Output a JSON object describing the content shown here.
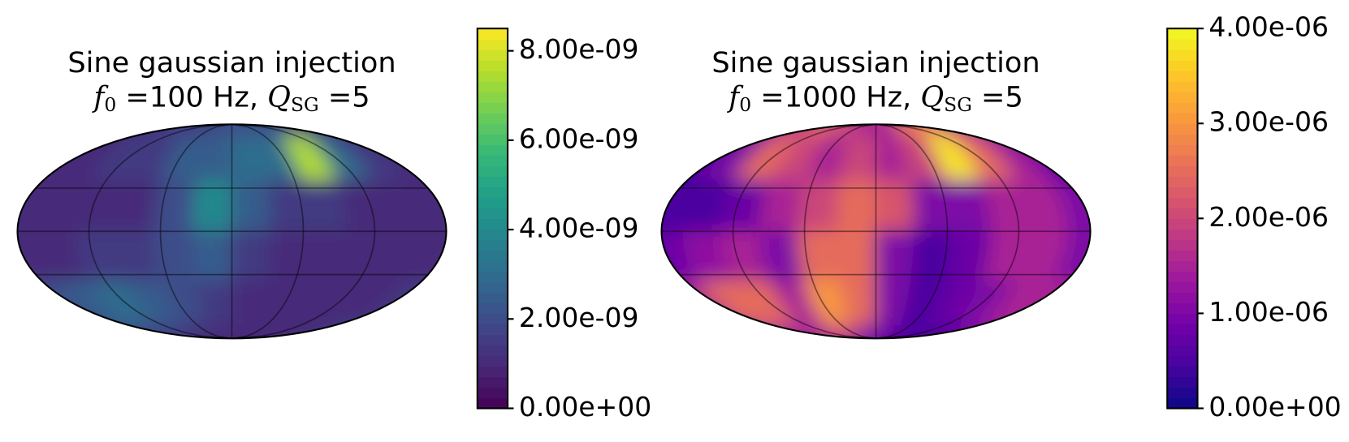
{
  "chart_data": [
    {
      "type": "heatmap",
      "title": "Sine gaussian injection",
      "subtitle_parts": [
        "f",
        "0",
        " =100 Hz, ",
        "Q",
        "SG",
        " =5"
      ],
      "lon": [
        -165,
        -135,
        -105,
        -75,
        -45,
        -15,
        15,
        45,
        75,
        105,
        135,
        165
      ],
      "lat": [
        75,
        45,
        15,
        -15,
        -45,
        -75
      ],
      "z": [
        [
          1e-09,
          1e-09,
          1.5e-09,
          1.5e-09,
          1.5e-09,
          2e-09,
          2e-09,
          2e-09,
          2e-09,
          1.5e-09,
          1e-09,
          1e-09
        ],
        [
          1e-09,
          1e-09,
          1.5e-09,
          1.5e-09,
          2.5e-09,
          2.5e-09,
          3e-09,
          3e-09,
          7.5e-09,
          3e-09,
          1.5e-09,
          1e-09
        ],
        [
          1e-09,
          1e-09,
          1e-09,
          1e-09,
          2e-09,
          4e-09,
          2.5e-09,
          1.5e-09,
          1.5e-09,
          1e-09,
          1e-09,
          1e-09
        ],
        [
          1e-09,
          1e-09,
          1.5e-09,
          1.5e-09,
          2e-09,
          2.5e-09,
          1.5e-09,
          1e-09,
          1e-09,
          1e-09,
          1e-09,
          1e-09
        ],
        [
          2e-09,
          2.5e-09,
          3e-09,
          2.5e-09,
          2e-09,
          1.5e-09,
          1e-09,
          1e-09,
          1e-09,
          1e-09,
          1e-09,
          1.5e-09
        ],
        [
          2e-09,
          2e-09,
          1.5e-09,
          1.5e-09,
          1e-09,
          1e-09,
          1e-09,
          1e-09,
          1e-09,
          1e-09,
          1.5e-09,
          2e-09
        ]
      ],
      "cmap": "viridis",
      "clim": [
        0,
        8.5e-09
      ],
      "cticks": [
        {
          "value": 0,
          "label": "0.00e+00"
        },
        {
          "value": 2e-09,
          "label": "2.00e-09"
        },
        {
          "value": 4e-09,
          "label": "4.00e-09"
        },
        {
          "value": 6e-09,
          "label": "6.00e-09"
        },
        {
          "value": 8e-09,
          "label": "8.00e-09"
        }
      ]
    },
    {
      "type": "heatmap",
      "title": "Sine gaussian injection",
      "subtitle_parts": [
        "f",
        "0",
        " =1000 Hz, ",
        "Q",
        "SG",
        " =5"
      ],
      "lon": [
        -165,
        -135,
        -105,
        -75,
        -45,
        -15,
        15,
        45,
        75,
        105,
        135,
        165
      ],
      "lat": [
        75,
        45,
        15,
        -15,
        -45,
        -75
      ],
      "z": [
        [
          8e-07,
          1.2e-06,
          2e-06,
          2.5e-06,
          2e-06,
          1.5e-06,
          1.5e-06,
          2.5e-06,
          3e-06,
          2e-06,
          1.5e-06,
          1e-06
        ],
        [
          5e-07,
          1e-06,
          2.5e-06,
          2e-06,
          1.5e-06,
          2e-06,
          1.5e-06,
          2e-06,
          3.8e-06,
          2.5e-06,
          1.5e-06,
          8e-07
        ],
        [
          5e-07,
          5e-07,
          8e-07,
          1.5e-06,
          2e-06,
          2.5e-06,
          2.2e-06,
          1e-06,
          1e-06,
          1.5e-06,
          1.5e-06,
          1e-06
        ],
        [
          8e-07,
          1.2e-06,
          1.5e-06,
          1e-06,
          2.5e-06,
          2.5e-06,
          1e-06,
          5e-07,
          8e-07,
          1.5e-06,
          1.5e-06,
          1e-06
        ],
        [
          1.5e-06,
          2.5e-06,
          2.5e-06,
          1.5e-06,
          3e-06,
          2.5e-06,
          1e-06,
          5e-07,
          8e-07,
          1e-06,
          1.5e-06,
          1.5e-06
        ],
        [
          1.2e-06,
          1.5e-06,
          1.5e-06,
          1.5e-06,
          2e-06,
          1e-06,
          8e-07,
          5e-07,
          5e-07,
          5e-07,
          1e-06,
          1.2e-06
        ]
      ],
      "cmap": "plasma",
      "clim": [
        0,
        4e-06
      ],
      "cticks": [
        {
          "value": 0,
          "label": "0.00e+00"
        },
        {
          "value": 1e-06,
          "label": "1.00e-06"
        },
        {
          "value": 2e-06,
          "label": "2.00e-06"
        },
        {
          "value": 3e-06,
          "label": "3.00e-06"
        },
        {
          "value": 4e-06,
          "label": "4.00e-06"
        }
      ]
    }
  ]
}
